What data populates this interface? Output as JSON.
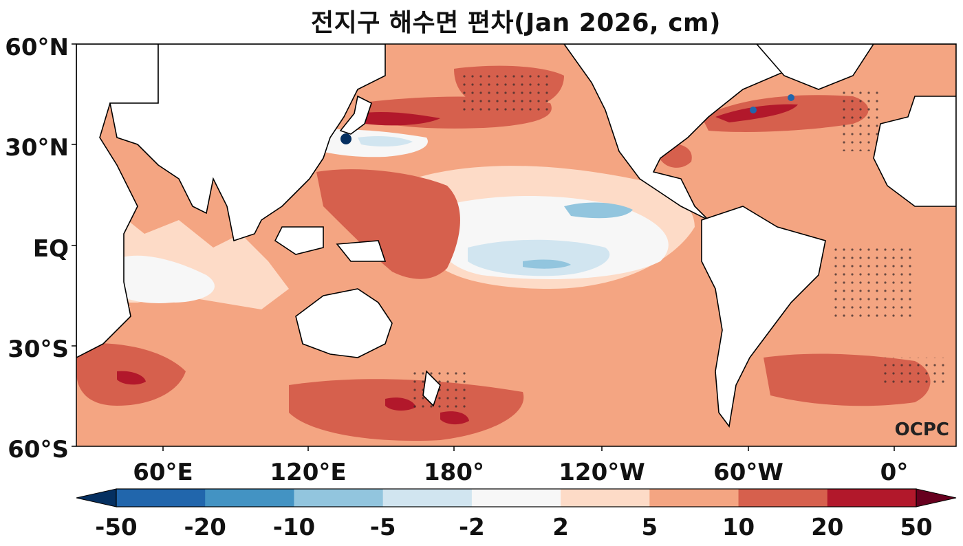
{
  "title": "전지구 해수면 편차(Jan 2026, cm)",
  "credit": "OCPC",
  "map": {
    "projection": "equirectangular",
    "lon_range": [
      "30°E",
      "20°E (wrapped)"
    ],
    "lat_range": [
      "60°S",
      "60°N"
    ],
    "lat_ticks": [
      "60°N",
      "30°N",
      "EQ",
      "30°S",
      "60°S"
    ],
    "lon_ticks": [
      "60°E",
      "120°E",
      "180°",
      "120°W",
      "60°W",
      "0°"
    ],
    "stippling": "significance dots shown in N Pacific, N Atlantic, S Atlantic and Southern Ocean"
  },
  "colorbar": {
    "labels": [
      "-50",
      "-20",
      "-10",
      "-5",
      "-2",
      "2",
      "5",
      "10",
      "20",
      "50"
    ],
    "colors": [
      "#053061",
      "#2166ac",
      "#4393c3",
      "#92c5de",
      "#d1e5f0",
      "#f7f7f7",
      "#fddbc7",
      "#f4a582",
      "#d6604d",
      "#b2182b",
      "#67001f"
    ],
    "extend": "both"
  },
  "colors": {
    "background_ocean": "#f4a582",
    "land": "#ffffff",
    "coastline": "#000000"
  }
}
